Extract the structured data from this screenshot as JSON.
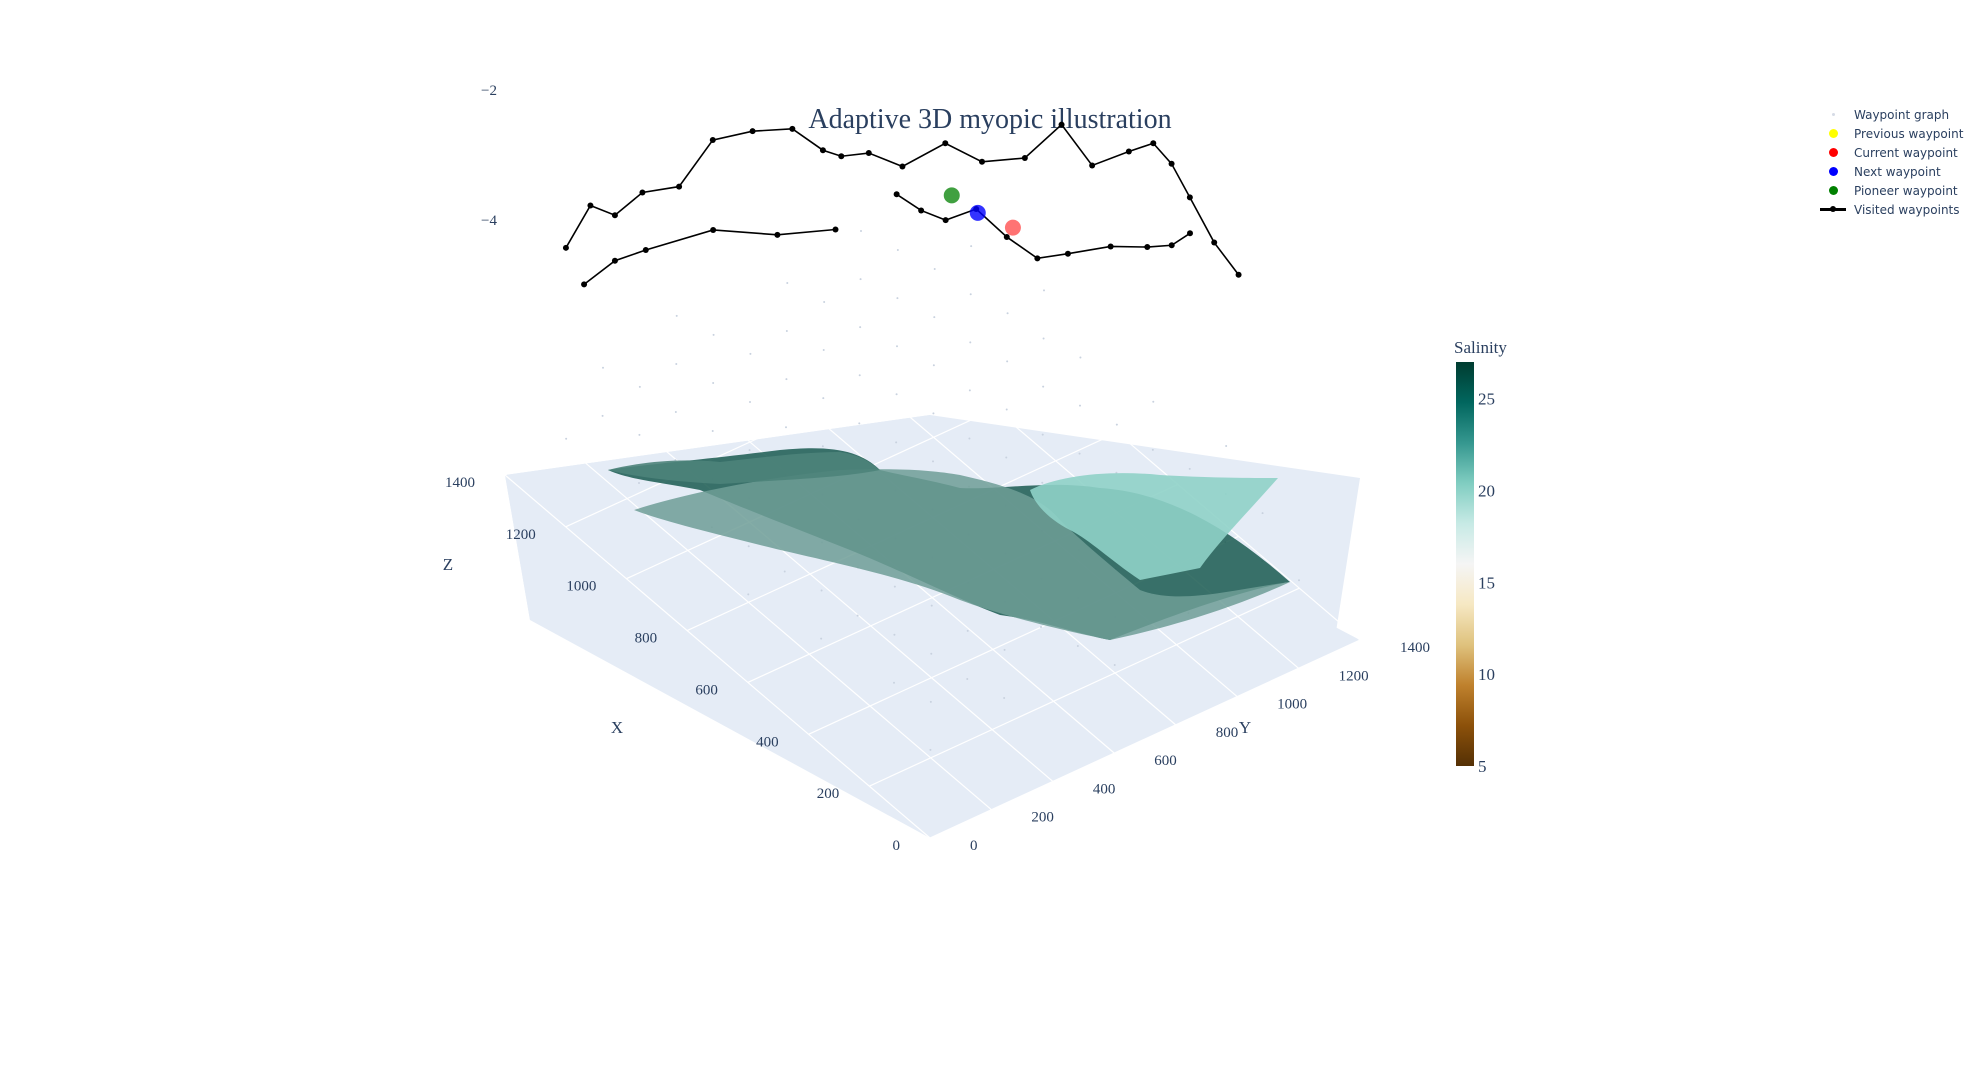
{
  "chart_data": {
    "type": "scatter3d",
    "title": "Adaptive 3D myopic illustration",
    "axes": {
      "x": {
        "label": "X",
        "ticks": [
          0,
          200,
          400,
          600,
          800,
          1000,
          1200,
          1400
        ]
      },
      "y": {
        "label": "Y",
        "ticks": [
          0,
          200,
          400,
          600,
          800,
          1000,
          1200,
          1400
        ]
      },
      "z": {
        "label": "Z",
        "ticks": [
          -2,
          -4
        ],
        "tick_labels": [
          "−2",
          "−4"
        ]
      }
    },
    "colorbar": {
      "title": "Salinity",
      "ticks": [
        5,
        10,
        15,
        20,
        25
      ],
      "range": [
        5,
        27
      ],
      "colors": [
        "#543005",
        "#8c510a",
        "#bf812d",
        "#dfc27d",
        "#f6e8c3",
        "#f5f5f5",
        "#c7eae5",
        "#80cdc1",
        "#35978f",
        "#01665e",
        "#003c30"
      ]
    },
    "legend": [
      {
        "name": "Waypoint graph",
        "kind": "dot",
        "color": "#d6dbe6",
        "size": 3
      },
      {
        "name": "Previous waypoint",
        "kind": "dot",
        "color": "#ffff00",
        "size": 9
      },
      {
        "name": "Current waypoint",
        "kind": "dot",
        "color": "#ff0000",
        "size": 9
      },
      {
        "name": "Next waypoint",
        "kind": "dot",
        "color": "#0000ff",
        "size": 9
      },
      {
        "name": "Pioneer waypoint",
        "kind": "dot",
        "color": "#008000",
        "size": 9
      },
      {
        "name": "Visited waypoints",
        "kind": "line",
        "color": "#000000"
      }
    ],
    "series": [
      {
        "name": "Visited waypoints",
        "segments": [
          [
            [
              1180,
              40,
              -4.2
            ],
            [
              1220,
              180,
              -4.3
            ],
            [
              1260,
              320,
              -4.6
            ],
            [
              1200,
              480,
              -4.4
            ],
            [
              1130,
              620,
              -4.5
            ],
            [
              1060,
              740,
              -4.4
            ]
          ],
          [
            [
              1260,
              60,
              -4.0
            ],
            [
              1240,
              120,
              -3.4
            ],
            [
              1220,
              180,
              -3.6
            ],
            [
              1180,
              230,
              -3.2
            ],
            [
              1120,
              290,
              -3.0
            ],
            [
              1100,
              380,
              -2.4
            ],
            [
              1060,
              470,
              -2.3
            ],
            [
              1020,
              560,
              -2.3
            ],
            [
              980,
              620,
              -2.6
            ],
            [
              960,
              660,
              -2.7
            ],
            [
              920,
              710,
              -2.6
            ],
            [
              880,
              780,
              -2.8
            ],
            [
              840,
              880,
              -2.5
            ],
            [
              800,
              960,
              -2.8
            ],
            [
              760,
              1060,
              -2.8
            ],
            [
              720,
              1140,
              -2.3
            ],
            [
              680,
              1200,
              -2.9
            ],
            [
              640,
              1280,
              -2.7
            ],
            [
              600,
              1320,
              -2.5
            ],
            [
              560,
              1340,
              -2.7
            ],
            [
              520,
              1360,
              -3.1
            ],
            [
              460,
              1380,
              -3.6
            ],
            [
              400,
              1400,
              -3.9
            ]
          ],
          [
            [
              980,
              860,
              -3.8
            ],
            [
              960,
              920,
              -4.1
            ],
            [
              940,
              980,
              -4.3
            ],
            [
              900,
              1040,
              -4.1
            ],
            [
              860,
              1100,
              -4.5
            ],
            [
              820,
              1160,
              -4.8
            ],
            [
              780,
              1220,
              -4.7
            ],
            [
              700,
              1280,
              -4.4
            ],
            [
              640,
              1340,
              -4.3
            ],
            [
              600,
              1380,
              -4.2
            ],
            [
              560,
              1400,
              -3.9
            ]
          ]
        ]
      },
      {
        "name": "Pioneer waypoint",
        "points": [
          [
            930,
            990,
            -3.9
          ]
        ]
      },
      {
        "name": "Next waypoint",
        "points": [
          [
            905,
            1050,
            -4.2
          ]
        ]
      },
      {
        "name": "Current waypoint",
        "points": [
          [
            860,
            1120,
            -4.4
          ]
        ]
      }
    ],
    "surfaces": [
      {
        "z_range": [
          -2.4,
          -3.8
        ],
        "colorbar_value": 22.5
      },
      {
        "z_range": [
          -2.2,
          -3.6
        ],
        "colorbar_value": 20.8
      }
    ]
  }
}
